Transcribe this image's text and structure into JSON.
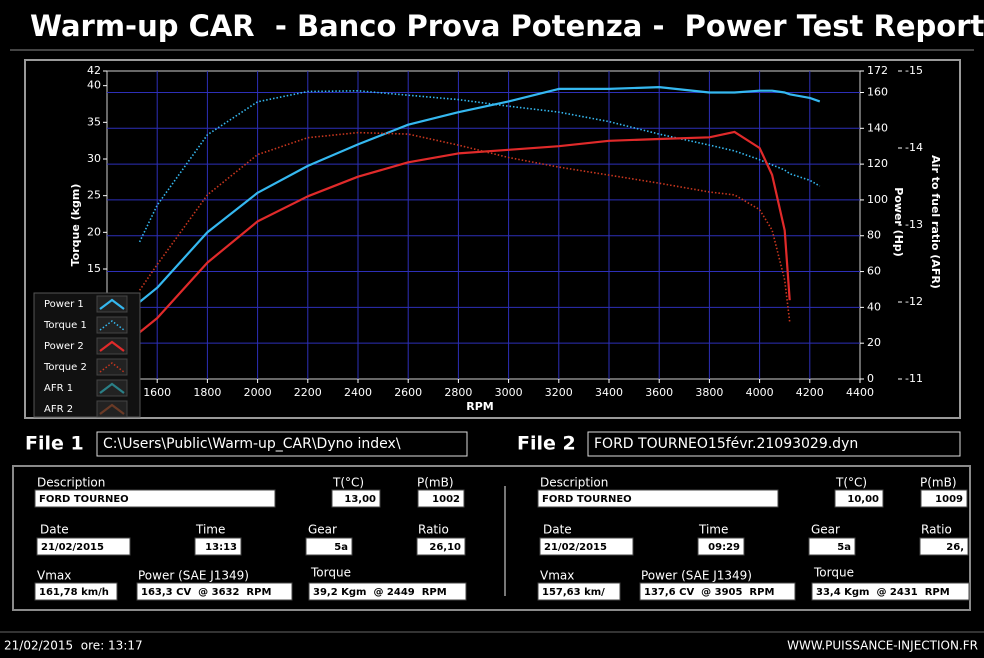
{
  "header": {
    "title": "Warm-up CAR  - Banco Prova Potenza -  Power Test Report"
  },
  "chart_data": {
    "type": "line",
    "xlabel": "RPM",
    "ylabel": "Torque (kgm)",
    "y2label": "Power (Hp)",
    "y3label": "Air to fuel ratio (AFR)",
    "x": [
      1530,
      1600,
      1800,
      2000,
      2200,
      2400,
      2600,
      2800,
      3000,
      3200,
      3400,
      3600,
      3800,
      3900,
      4000,
      4050,
      4100,
      4120,
      4200,
      4240
    ],
    "xlim": [
      1400,
      4400
    ],
    "xticks": [
      1600,
      1800,
      2000,
      2200,
      2400,
      2600,
      2800,
      3000,
      3200,
      3400,
      3600,
      3800,
      4000,
      4200,
      4400
    ],
    "ylim": [
      0,
      42
    ],
    "yticks": [
      15,
      20,
      25,
      30,
      35,
      40,
      42
    ],
    "y2lim": [
      0,
      172
    ],
    "y2ticks": [
      0,
      20,
      40,
      60,
      80,
      100,
      120,
      140,
      160,
      172
    ],
    "y3lim": [
      -11,
      -15
    ],
    "y3ticks": [
      -15,
      -14,
      -13,
      -12,
      -11
    ],
    "grid": true,
    "legend": "lower left",
    "series": [
      {
        "name": "Power 1",
        "color": "#35b8f0",
        "axis": "y2",
        "style": "solid",
        "values": [
          43,
          51,
          82,
          104,
          119,
          131,
          142,
          149,
          155,
          162,
          162,
          163,
          160,
          160,
          161,
          161,
          160,
          159,
          157,
          155
        ]
      },
      {
        "name": "Torque 1",
        "color": "#35b8f0",
        "axis": "y",
        "style": "dotted",
        "values": [
          18.7,
          23.7,
          33.3,
          37.8,
          39.2,
          39.3,
          38.7,
          38.1,
          37.2,
          36.4,
          35.1,
          33.4,
          31.9,
          31.1,
          29.9,
          29.2,
          28.5,
          28,
          27.1,
          26.3
        ]
      },
      {
        "name": "Power 2",
        "color": "#e02a2a",
        "axis": "y2",
        "style": "solid",
        "values": [
          26,
          34,
          65,
          88,
          102,
          113,
          121,
          126,
          128,
          130,
          133,
          134,
          135,
          138,
          129,
          114,
          83,
          44,
          null,
          null
        ]
      },
      {
        "name": "Torque 2",
        "color": "#c8361e",
        "axis": "y",
        "style": "dotted",
        "values": [
          12.1,
          15.6,
          25.1,
          30.6,
          32.9,
          33.6,
          33.4,
          31.9,
          30.2,
          28.9,
          27.8,
          26.7,
          25.5,
          25.1,
          23.1,
          20.3,
          13.5,
          7.8,
          null,
          null
        ]
      },
      {
        "name": "AFR 1",
        "color": "#2a7f86",
        "axis": "y3",
        "style": "solid"
      },
      {
        "name": "AFR 2",
        "color": "#6a3a26",
        "axis": "y3",
        "style": "solid"
      }
    ]
  },
  "file1": {
    "label": "File 1",
    "path": "C:\\Users\\Public\\Warm-up_CAR\\Dyno index\\",
    "description_label": "Description",
    "description": "FORD TOURNEO",
    "temp_label": "T(°C)",
    "temp": "13,00",
    "pressure_label": "P(mB)",
    "pressure": "1002",
    "date_label": "Date",
    "date": "21/02/2015",
    "time_label": "Time",
    "time": "13:13",
    "gear_label": "Gear",
    "gear": "5a",
    "ratio_label": "Ratio",
    "ratio": "26,10",
    "vmax_label": "Vmax",
    "vmax": "161,78 km/h",
    "power_label": "Power (SAE J1349)",
    "power": "163,3 CV  @ 3632  RPM",
    "torque_label": "Torque",
    "torque": "39,2 Kgm  @ 2449  RPM"
  },
  "file2": {
    "label": "File 2",
    "path": "FORD TOURNEO15févr.21093029.dyn",
    "description_label": "Description",
    "description": "FORD TOURNEO",
    "temp_label": "T(°C)",
    "temp": "10,00",
    "pressure_label": "P(mB)",
    "pressure": "1009",
    "date_label": "Date",
    "date": "21/02/2015",
    "time_label": "Time",
    "time": "09:29",
    "gear_label": "Gear",
    "gear": "5a",
    "ratio_label": "Ratio",
    "ratio": "26,",
    "vmax_label": "Vmax",
    "vmax": "157,63 km/",
    "power_label": "Power (SAE J1349)",
    "power": "137,6 CV  @ 3905  RPM",
    "torque_label": "Torque",
    "torque": "33,4 Kgm  @ 2431  RPM"
  },
  "footer": {
    "datetime": "21/02/2015  ore: 13:17",
    "website": "WWW.PUISSANCE-INJECTION.FR"
  }
}
